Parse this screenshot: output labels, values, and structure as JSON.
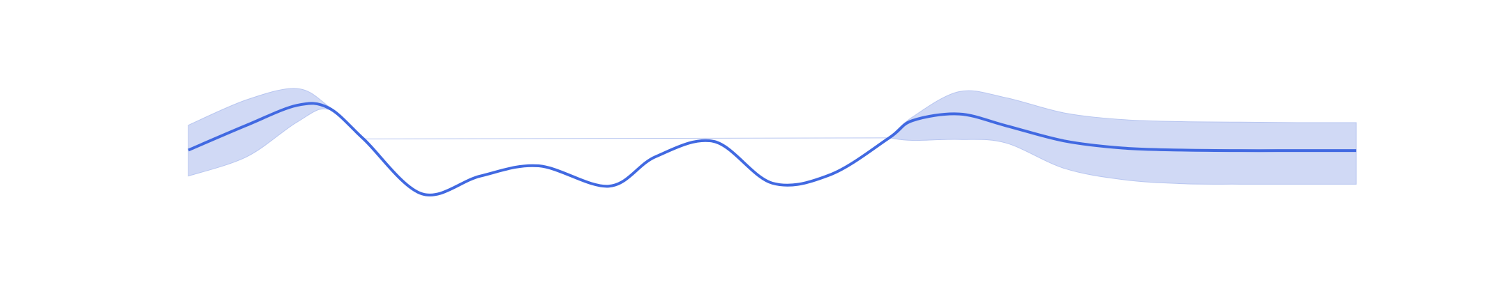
{
  "chart_data": {
    "type": "area",
    "title": "",
    "xlabel": "",
    "ylabel": "",
    "grid": false,
    "legend": "none",
    "axes_visible": false,
    "xlim": [
      0,
      10
    ],
    "ylim": [
      -2.5,
      2.5
    ],
    "x": [
      0,
      0.5,
      0.93,
      1.2,
      1.5,
      2.0,
      2.5,
      3.0,
      3.6,
      4.0,
      4.5,
      5.0,
      5.5,
      6.0,
      6.2,
      6.6,
      7.0,
      7.5,
      8.0,
      8.5,
      9.0,
      9.5,
      10.0
    ],
    "series": [
      {
        "role": "mean",
        "color": "#4169e1",
        "values": [
          -0.04,
          0.45,
          0.84,
          0.79,
          0.18,
          -0.9,
          -0.55,
          -0.35,
          -0.75,
          -0.17,
          0.13,
          -0.69,
          -0.52,
          0.2,
          0.54,
          0.67,
          0.44,
          0.14,
          0.0,
          -0.04,
          -0.05,
          -0.05,
          -0.05
        ]
      },
      {
        "role": "confidence-band",
        "color": "#d0d9f5",
        "x": [
          0,
          0.5,
          0.93,
          1.2,
          1.5,
          6.0,
          6.2,
          6.6,
          7.0,
          7.5,
          8.0,
          8.5,
          9.0,
          9.5,
          10.0
        ],
        "upper": [
          0.45,
          0.95,
          1.17,
          0.82,
          0.18,
          0.2,
          0.61,
          1.11,
          0.99,
          0.69,
          0.56,
          0.52,
          0.51,
          0.5,
          0.5
        ],
        "lower": [
          -0.55,
          -0.17,
          0.51,
          0.76,
          0.18,
          0.2,
          0.15,
          0.17,
          0.1,
          -0.4,
          -0.62,
          -0.7,
          -0.71,
          -0.71,
          -0.71
        ]
      }
    ]
  }
}
